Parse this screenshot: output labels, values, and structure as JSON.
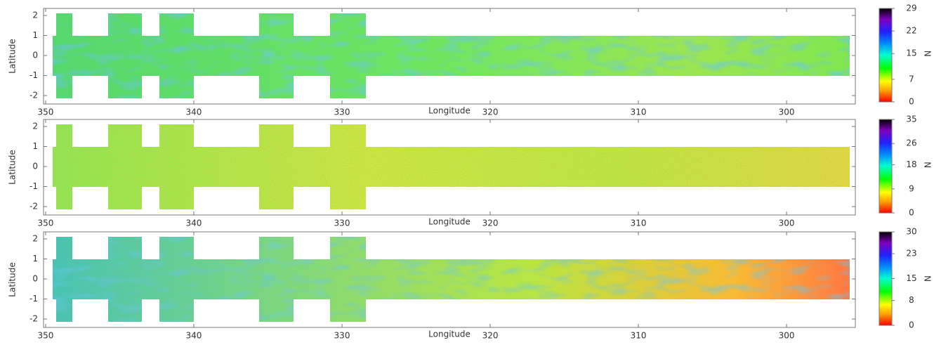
{
  "chart_data": [
    {
      "type": "heatmap",
      "xlabel": "Longitude",
      "ylabel": "Latitude",
      "xlim": [
        350.14,
        295.36
      ],
      "xticks": [
        350,
        340,
        330,
        320,
        310,
        300
      ],
      "ylim": [
        -2.42,
        2.35
      ],
      "yticks": [
        -2,
        -1,
        0,
        1,
        2
      ],
      "colorbar": {
        "label": "N",
        "lim": [
          0,
          29
        ],
        "ticks": [
          0,
          7,
          15,
          22,
          29
        ]
      }
    },
    {
      "type": "heatmap",
      "xlabel": "Longitude",
      "ylabel": "Latitude",
      "xlim": [
        350.14,
        295.36
      ],
      "xticks": [
        350,
        340,
        330,
        320,
        310,
        300
      ],
      "ylim": [
        -2.42,
        2.35
      ],
      "yticks": [
        -2,
        -1,
        0,
        1,
        2
      ],
      "colorbar": {
        "label": "N",
        "lim": [
          0,
          35
        ],
        "ticks": [
          0,
          9,
          18,
          26,
          35
        ]
      }
    },
    {
      "type": "heatmap",
      "xlabel": "Longitude",
      "ylabel": "Latitude",
      "xlim": [
        350.14,
        295.36
      ],
      "xticks": [
        350,
        340,
        330,
        320,
        310,
        300
      ],
      "ylim": [
        -2.42,
        2.35
      ],
      "yticks": [
        -2,
        -1,
        0,
        1,
        2
      ],
      "colorbar": {
        "label": "N",
        "lim": [
          0,
          30
        ],
        "ticks": [
          0,
          8,
          15,
          23,
          30
        ]
      }
    }
  ]
}
